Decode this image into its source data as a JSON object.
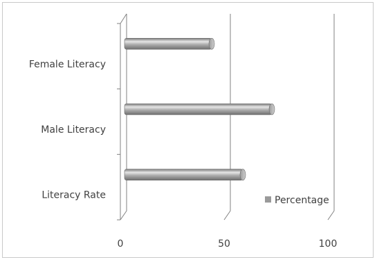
{
  "chart_data": {
    "type": "bar",
    "orientation": "horizontal",
    "style": "3d-cylinder",
    "categories": [
      "Female Literacy",
      "Male Literacy",
      "Literacy Rate"
    ],
    "series": [
      {
        "name": "Percentage",
        "values": [
          42,
          71,
          57
        ]
      }
    ],
    "x_ticks": [
      "0",
      "50",
      "100"
    ],
    "xlim": [
      0,
      100
    ],
    "legend": "bottom-right inside plot",
    "grid": true,
    "colors": {
      "bar": "#9a9a9a",
      "bar_highlight": "#e6e6e6",
      "axis": "#808080"
    }
  }
}
